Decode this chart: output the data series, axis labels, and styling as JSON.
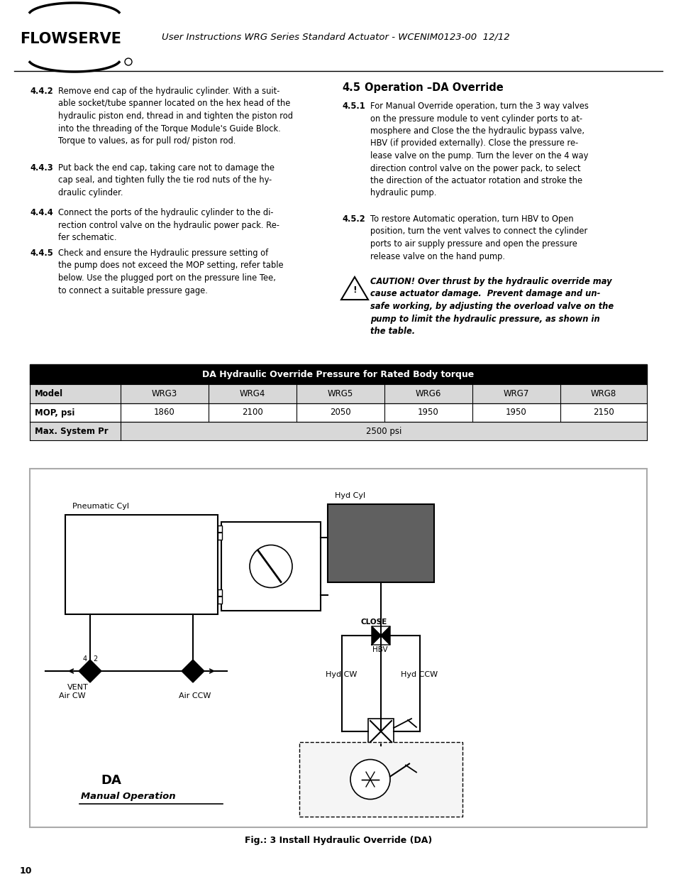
{
  "page_bg": "#ffffff",
  "header_title": "User Instructions WRG Series Standard Actuator - WCENIM0123-00  12/12",
  "page_number": "10",
  "s442": "Remove end cap of the hydraulic cylinder. With a suit-\nable socket/tube spanner located on the hex head of the\nhydraulic piston end, thread in and tighten the piston rod\ninto the threading of the Torque Module's Guide Block.\nTorque to values, as for pull rod/ piston rod.",
  "s443": "Put back the end cap, taking care not to damage the\ncap seal, and tighten fully the tie rod nuts of the hy-\ndraulic cylinder.",
  "s444": "Connect the ports of the hydraulic cylinder to the di-\nrection control valve on the hydraulic power pack. Re-\nfer schematic.",
  "s445": "Check and ensure the Hydraulic pressure setting of\nthe pump does not exceed the MOP setting, refer table\nbelow. Use the plugged port on the pressure line Tee,\nto connect a suitable pressure gage.",
  "s451": "For Manual Override operation, turn the 3 way valves\non the pressure module to vent cylinder ports to at-\nmosphere and Close the the hydraulic bypass valve,\nHBV (if provided externally). Close the pressure re-\nlease valve on the pump. Turn the lever on the 4 way\ndirection control valve on the power pack, to select\nthe direction of the actuator rotation and stroke the\nhydraulic pump.",
  "s452": "To restore Automatic operation, turn HBV to Open\nposition, turn the vent valves to connect the cylinder\nports to air supply pressure and open the pressure\nrelease valve on the hand pump.",
  "caution": "CAUTION! Over thrust by the hydraulic override may\ncause actuator damage.  Prevent damage and un-\nsafe working, by adjusting the overload valve on the\npump to limit the hydraulic pressure, as shown in\nthe table.",
  "table_header": "DA Hydraulic Override Pressure for Rated Body torque",
  "table_col_headers": [
    "Model",
    "WRG3",
    "WRG4",
    "WRG5",
    "WRG6",
    "WRG7",
    "WRG8"
  ],
  "table_row1_label": "MOP, psi",
  "table_row1_values": [
    "1860",
    "2100",
    "2050",
    "1950",
    "1950",
    "2150"
  ],
  "table_row2_label": "Max. System Pr",
  "table_row2_value": "2500 psi",
  "fig_caption": "Fig.: 3 Install Hydraulic Override (DA)"
}
